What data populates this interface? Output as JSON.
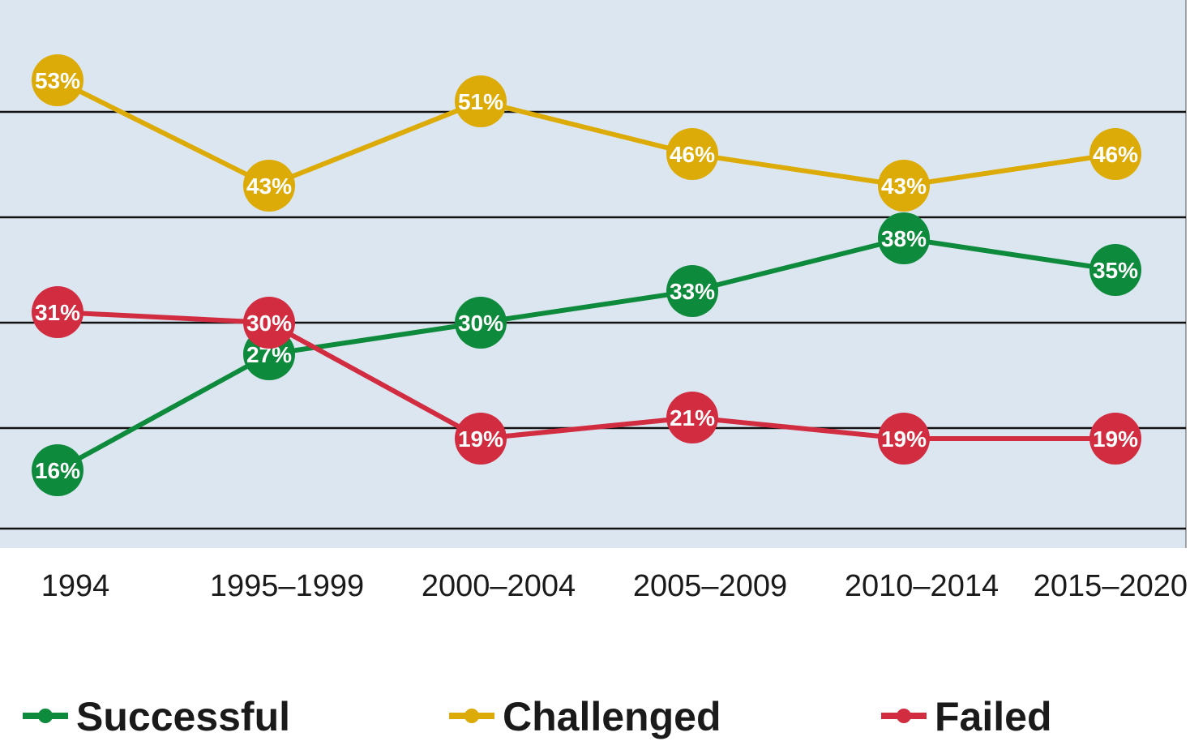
{
  "chart_data": {
    "type": "line",
    "title": "",
    "xlabel": "",
    "ylabel": "",
    "categories": [
      "1994",
      "1995–1999",
      "2000–2004",
      "2005–2009",
      "2010–2014",
      "2015–2020"
    ],
    "ylim": [
      0,
      60
    ],
    "grid": true,
    "legend_position": "bottom",
    "series": [
      {
        "name": "Successful",
        "color": "#0e8a3c",
        "values": [
          16,
          27,
          30,
          33,
          38,
          35
        ],
        "labels": [
          "16%",
          "27%",
          "30%",
          "33%",
          "38%",
          "35%"
        ]
      },
      {
        "name": "Challenged",
        "color": "#dcab07",
        "values": [
          53,
          43,
          51,
          46,
          43,
          46
        ],
        "labels": [
          "53%",
          "43%",
          "51%",
          "46%",
          "43%",
          "46%"
        ]
      },
      {
        "name": "Failed",
        "color": "#d12c40",
        "values": [
          31,
          30,
          19,
          21,
          19,
          19
        ],
        "labels": [
          "31%",
          "30%",
          "19%",
          "21%",
          "19%",
          "19%"
        ]
      }
    ]
  },
  "colors": {
    "plot_background": "#dce6f1",
    "gridline": "#111111"
  }
}
